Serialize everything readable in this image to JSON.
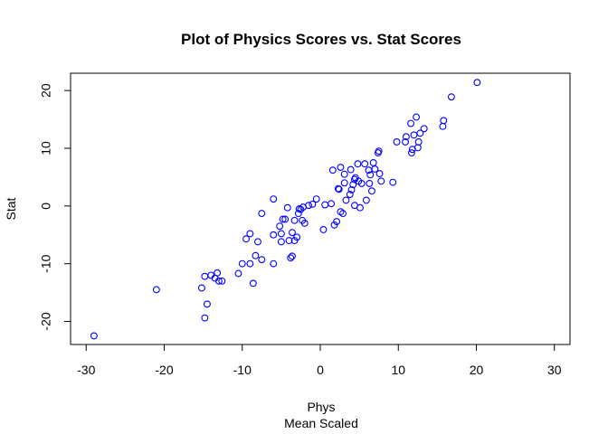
{
  "chart_data": {
    "type": "scatter",
    "title": "Plot of Physics Scores vs. Stat Scores",
    "xlabel": "Phys",
    "xlabel_sub": "Mean Scaled",
    "ylabel": "Stat",
    "xlim": [
      -32,
      32
    ],
    "ylim": [
      -24,
      23
    ],
    "xticks": [
      -30,
      -20,
      -10,
      0,
      10,
      20,
      30
    ],
    "yticks": [
      -20,
      -10,
      0,
      10,
      20
    ],
    "xtick_labels": [
      "-30",
      "-20",
      "-10",
      "0",
      "10",
      "20",
      "30"
    ],
    "ytick_labels": [
      "-20",
      "-10",
      "0",
      "10",
      "20"
    ],
    "grid": false,
    "legend": "none",
    "marker": "open-circle",
    "color": "#0000ff",
    "points": [
      [
        -29,
        -22.5
      ],
      [
        -21,
        -14.5
      ],
      [
        -15.2,
        -14.2
      ],
      [
        -14.8,
        -12.2
      ],
      [
        -14.8,
        -19.4
      ],
      [
        -14.5,
        -17.0
      ],
      [
        -14.0,
        -12.0
      ],
      [
        -13.5,
        -12.5
      ],
      [
        -13.2,
        -11.6
      ],
      [
        -13.0,
        -13.0
      ],
      [
        -12.6,
        -13.0
      ],
      [
        -10.5,
        -11.7
      ],
      [
        -10.0,
        -10.0
      ],
      [
        -9.5,
        -5.7
      ],
      [
        -9.0,
        -10.0
      ],
      [
        -9.0,
        -4.8
      ],
      [
        -8.6,
        -13.4
      ],
      [
        -8.3,
        -8.6
      ],
      [
        -8.0,
        -6.2
      ],
      [
        -7.5,
        -1.3
      ],
      [
        -7.5,
        -9.3
      ],
      [
        -6.0,
        -10.0
      ],
      [
        -6.0,
        -5.0
      ],
      [
        -6.0,
        1.2
      ],
      [
        -5.2,
        -3.5
      ],
      [
        -5.0,
        -4.8
      ],
      [
        -5.0,
        -6.2
      ],
      [
        -4.8,
        -2.3
      ],
      [
        -4.5,
        -2.3
      ],
      [
        -4.2,
        -0.3
      ],
      [
        -4.0,
        -6.0
      ],
      [
        -3.8,
        -9.0
      ],
      [
        -3.6,
        -8.7
      ],
      [
        -3.6,
        -4.6
      ],
      [
        -3.3,
        -6.0
      ],
      [
        -3.3,
        -2.5
      ],
      [
        -3.0,
        -5.4
      ],
      [
        -2.8,
        -1.3
      ],
      [
        -2.7,
        -0.5
      ],
      [
        -2.5,
        -0.6
      ],
      [
        -2.3,
        -2.5
      ],
      [
        -2.2,
        -0.2
      ],
      [
        -2.0,
        -3.0
      ],
      [
        -1.5,
        0.1
      ],
      [
        -1.0,
        0.3
      ],
      [
        -0.5,
        1.2
      ],
      [
        0.4,
        -4.1
      ],
      [
        0.6,
        0.2
      ],
      [
        1.4,
        0.4
      ],
      [
        1.6,
        6.2
      ],
      [
        1.8,
        -3.3
      ],
      [
        2.1,
        -2.7
      ],
      [
        2.3,
        3.0
      ],
      [
        2.4,
        2.9
      ],
      [
        2.6,
        -1.0
      ],
      [
        2.6,
        6.7
      ],
      [
        2.9,
        -1.3
      ],
      [
        3.1,
        5.5
      ],
      [
        3.1,
        4.0
      ],
      [
        3.3,
        1.0
      ],
      [
        3.8,
        2.0
      ],
      [
        3.9,
        6.3
      ],
      [
        4.0,
        2.8
      ],
      [
        4.2,
        3.7
      ],
      [
        4.4,
        0.1
      ],
      [
        4.4,
        4.6
      ],
      [
        4.5,
        4.9
      ],
      [
        4.8,
        7.3
      ],
      [
        4.9,
        4.3
      ],
      [
        5.1,
        -0.3
      ],
      [
        5.3,
        3.9
      ],
      [
        5.7,
        7.3
      ],
      [
        5.9,
        1.0
      ],
      [
        6.2,
        6.2
      ],
      [
        6.3,
        3.9
      ],
      [
        6.4,
        5.4
      ],
      [
        6.6,
        2.6
      ],
      [
        6.8,
        7.5
      ],
      [
        7.0,
        6.4
      ],
      [
        7.4,
        9.2
      ],
      [
        7.5,
        9.5
      ],
      [
        7.6,
        5.6
      ],
      [
        7.8,
        4.3
      ],
      [
        9.3,
        4.1
      ],
      [
        9.8,
        11.1
      ],
      [
        10.9,
        11.1
      ],
      [
        11.0,
        12.0
      ],
      [
        11.6,
        14.3
      ],
      [
        11.7,
        9.2
      ],
      [
        11.8,
        9.8
      ],
      [
        12.0,
        12.3
      ],
      [
        12.3,
        15.4
      ],
      [
        12.5,
        10.1
      ],
      [
        12.6,
        11.1
      ],
      [
        12.8,
        12.6
      ],
      [
        13.3,
        13.4
      ],
      [
        15.7,
        13.8
      ],
      [
        15.8,
        14.8
      ],
      [
        16.8,
        18.9
      ],
      [
        20.1,
        21.4
      ]
    ]
  }
}
